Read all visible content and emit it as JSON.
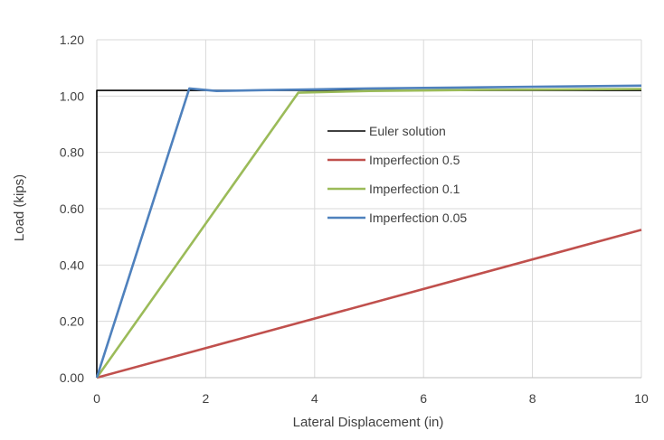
{
  "chart_data": {
    "type": "line",
    "title": "",
    "xlabel": "Lateral Displacement (in)",
    "ylabel": "Load (kips)",
    "xlim": [
      0,
      10
    ],
    "ylim": [
      0,
      1.2
    ],
    "x_ticks": [
      0,
      2,
      4,
      6,
      8,
      10
    ],
    "x_tick_labels": [
      "0",
      "2",
      "4",
      "6",
      "8",
      "10"
    ],
    "y_ticks": [
      0,
      0.2,
      0.4,
      0.6,
      0.8,
      1.0,
      1.2
    ],
    "y_tick_labels": [
      "0.00",
      "0.20",
      "0.40",
      "0.60",
      "0.80",
      "1.00",
      "1.20"
    ],
    "grid": true,
    "legend_position": "center",
    "series": [
      {
        "name": "Euler solution",
        "color": "#000000",
        "x": [
          0,
          0,
          10
        ],
        "y": [
          0,
          1.02,
          1.02
        ]
      },
      {
        "name": "Imperfection 0.5",
        "color": "#c0504d",
        "x": [
          0,
          10
        ],
        "y": [
          0,
          0.525
        ]
      },
      {
        "name": "Imperfection 0.1",
        "color": "#9bbb59",
        "x": [
          0,
          3.7,
          5,
          7,
          10
        ],
        "y": [
          0,
          1.012,
          1.018,
          1.022,
          1.025
        ]
      },
      {
        "name": "Imperfection 0.05",
        "color": "#4f81bd",
        "x": [
          0,
          1.7,
          2.2,
          3,
          4,
          5,
          6,
          7,
          8,
          9,
          10
        ],
        "y": [
          0,
          1.027,
          1.018,
          1.021,
          1.024,
          1.027,
          1.029,
          1.031,
          1.033,
          1.035,
          1.037
        ]
      }
    ]
  }
}
